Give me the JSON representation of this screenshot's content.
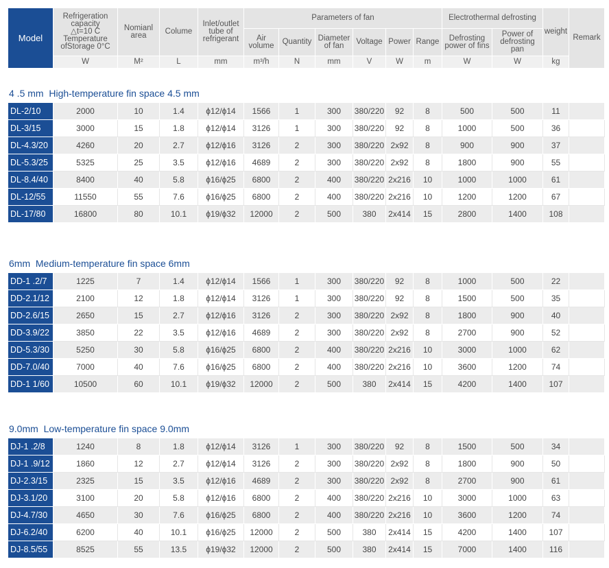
{
  "header": {
    "groups": [
      "Parameters of fan",
      "Electrothermal defrosting"
    ],
    "columns": [
      {
        "lines": [
          "Model"
        ]
      },
      {
        "lines": [
          "Refrigeration",
          "capacity",
          "△t=10 C",
          "Temperature",
          "ofStorage 0°C"
        ],
        "unit": "W"
      },
      {
        "lines": [
          "Nomianl",
          "area"
        ],
        "unit": "M²"
      },
      {
        "lines": [
          "Colume"
        ],
        "unit": "L"
      },
      {
        "lines": [
          "Inlet/outlet",
          "tube of",
          "refrigerant"
        ],
        "unit": "mm"
      },
      {
        "lines": [
          "Air",
          "volume"
        ],
        "unit": "m³/h"
      },
      {
        "lines": [
          "Quantity"
        ],
        "unit": "N"
      },
      {
        "lines": [
          "Diameter",
          "of fan"
        ],
        "unit": "mm"
      },
      {
        "lines": [
          "Voltage"
        ],
        "unit": "V"
      },
      {
        "lines": [
          "Power"
        ],
        "unit": "W"
      },
      {
        "lines": [
          "Range"
        ],
        "unit": "m"
      },
      {
        "lines": [
          "Defrosting",
          "power of fins"
        ],
        "unit": "W"
      },
      {
        "lines": [
          "Power of",
          "defrosting",
          "pan"
        ],
        "unit": "W"
      },
      {
        "lines": [
          "weight"
        ],
        "unit": "kg"
      },
      {
        "lines": [
          "Remark"
        ]
      }
    ]
  },
  "sections": [
    {
      "title": "4 .5 mm  High-temperature fin space 4.5 mm",
      "rows": [
        [
          "DL-2/10",
          "2000",
          "10",
          "1.4",
          "ϕ12/ϕ14",
          "1566",
          "1",
          "300",
          "380/220",
          "92",
          "8",
          "500",
          "500",
          "11"
        ],
        [
          "DL-3/15",
          "3000",
          "15",
          "1.8",
          "ϕ12/ϕ14",
          "3126",
          "1",
          "300",
          "380/220",
          "92",
          "8",
          "1000",
          "500",
          "36"
        ],
        [
          "DL-4.3/20",
          "4260",
          "20",
          "2.7",
          "ϕ12/ϕ16",
          "3126",
          "2",
          "300",
          "380/220",
          "2x92",
          "8",
          "900",
          "900",
          "37"
        ],
        [
          "DL-5.3/25",
          "5325",
          "25",
          "3.5",
          "ϕ12/ϕ16",
          "4689",
          "2",
          "300",
          "380/220",
          "2x92",
          "8",
          "1800",
          "900",
          "55"
        ],
        [
          "DL-8.4/40",
          "8400",
          "40",
          "5.8",
          "ϕ16/ϕ25",
          "6800",
          "2",
          "400",
          "380/220",
          "2x216",
          "10",
          "1000",
          "1000",
          "61"
        ],
        [
          "DL-12/55",
          "11550",
          "55",
          "7.6",
          "ϕ16/ϕ25",
          "6800",
          "2",
          "400",
          "380/220",
          "2x216",
          "10",
          "1200",
          "1200",
          "67"
        ],
        [
          "DL-17/80",
          "16800",
          "80",
          "10.1",
          "ϕ19/ϕ32",
          "12000",
          "2",
          "500",
          "380",
          "2x414",
          "15",
          "2800",
          "1400",
          "108"
        ]
      ]
    },
    {
      "title": "6mm  Medium-temperature fin space 6mm",
      "rows": [
        [
          "DD-1 .2/7",
          "1225",
          "7",
          "1.4",
          "ϕ12/ϕ14",
          "1566",
          "1",
          "300",
          "380/220",
          "92",
          "8",
          "1000",
          "500",
          "22"
        ],
        [
          "DD-2.1/12",
          "2100",
          "12",
          "1.8",
          "ϕ12/ϕ14",
          "3126",
          "1",
          "300",
          "380/220",
          "92",
          "8",
          "1500",
          "500",
          "35"
        ],
        [
          "DD-2.6/15",
          "2650",
          "15",
          "2.7",
          "ϕ12/ϕ16",
          "3126",
          "2",
          "300",
          "380/220",
          "2x92",
          "8",
          "1800",
          "900",
          "40"
        ],
        [
          "DD-3.9/22",
          "3850",
          "22",
          "3.5",
          "ϕ12/ϕ16",
          "4689",
          "2",
          "300",
          "380/220",
          "2x92",
          "8",
          "2700",
          "900",
          "52"
        ],
        [
          "DD-5.3/30",
          "5250",
          "30",
          "5.8",
          "ϕ16/ϕ25",
          "6800",
          "2",
          "400",
          "380/220",
          "2x216",
          "10",
          "3000",
          "1000",
          "62"
        ],
        [
          "DD-7.0/40",
          "7000",
          "40",
          "7.6",
          "ϕ16/ϕ25",
          "6800",
          "2",
          "400",
          "380/220",
          "2x216",
          "10",
          "3600",
          "1200",
          "74"
        ],
        [
          "DD-1 1/60",
          "10500",
          "60",
          "10.1",
          "ϕ19/ϕ32",
          "12000",
          "2",
          "500",
          "380",
          "2x414",
          "15",
          "4200",
          "1400",
          "107"
        ]
      ]
    },
    {
      "title": "9.0mm  Low-temperature fin space 9.0mm",
      "rows": [
        [
          "DJ-1 .2/8",
          "1240",
          "8",
          "1.8",
          "ϕ12/ϕ14",
          "3126",
          "1",
          "300",
          "380/220",
          "92",
          "8",
          "1500",
          "500",
          "34"
        ],
        [
          "DJ-1 .9/12",
          "1860",
          "12",
          "2.7",
          "ϕ12/ϕ14",
          "3126",
          "2",
          "300",
          "380/220",
          "2x92",
          "8",
          "1800",
          "900",
          "50"
        ],
        [
          "DJ-2.3/15",
          "2325",
          "15",
          "3.5",
          "ϕ12/ϕ16",
          "4689",
          "2",
          "300",
          "380/220",
          "2x92",
          "8",
          "2700",
          "900",
          "61"
        ],
        [
          "DJ-3.1/20",
          "3100",
          "20",
          "5.8",
          "ϕ12/ϕ16",
          "6800",
          "2",
          "400",
          "380/220",
          "2x216",
          "10",
          "3000",
          "1000",
          "63"
        ],
        [
          "DJ-4.7/30",
          "4650",
          "30",
          "7.6",
          "ϕ16/ϕ25",
          "6800",
          "2",
          "400",
          "380/220",
          "2x216",
          "10",
          "3600",
          "1200",
          "74"
        ],
        [
          "DJ-6.2/40",
          "6200",
          "40",
          "10.1",
          "ϕ16/ϕ25",
          "12000",
          "2",
          "500",
          "380",
          "2x414",
          "15",
          "4200",
          "1400",
          "107"
        ],
        [
          "DJ-8.5/55",
          "8525",
          "55",
          "13.5",
          "ϕ19/ϕ32",
          "12000",
          "2",
          "500",
          "380",
          "2x414",
          "15",
          "7000",
          "1400",
          "116"
        ]
      ]
    }
  ]
}
